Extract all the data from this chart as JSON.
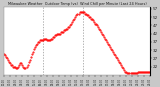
{
  "title": "Milwaukee Weather  Outdoor Temp (vs)  Wind Chill per Minute (Last 24 Hours)",
  "line_color": "#ff0000",
  "bg_color": "#c8c8c8",
  "plot_bg_color": "#ffffff",
  "grid_color": "#999999",
  "vline_color": "#888888",
  "ylim": [
    17,
    58
  ],
  "yticks": [
    22,
    27,
    32,
    37,
    42,
    47,
    52,
    57
  ],
  "vline_positions": [
    0.27,
    0.54
  ],
  "temp_data": [
    30,
    29,
    28,
    27,
    26,
    25,
    24,
    23,
    23,
    22,
    22,
    22,
    21,
    21,
    22,
    23,
    24,
    24,
    23,
    22,
    21,
    21,
    22,
    23,
    25,
    26,
    28,
    30,
    31,
    33,
    34,
    35,
    36,
    37,
    37,
    38,
    38,
    38,
    38,
    39,
    39,
    39,
    38,
    38,
    38,
    38,
    39,
    39,
    40,
    40,
    41,
    41,
    42,
    42,
    42,
    42,
    43,
    43,
    43,
    44,
    44,
    45,
    45,
    46,
    46,
    47,
    48,
    49,
    50,
    51,
    52,
    53,
    54,
    54,
    55,
    55,
    55,
    55,
    55,
    54,
    54,
    53,
    53,
    52,
    52,
    51,
    51,
    50,
    49,
    48,
    48,
    47,
    46,
    45,
    44,
    43,
    42,
    41,
    40,
    39,
    38,
    37,
    36,
    35,
    34,
    33,
    32,
    31,
    30,
    29,
    28,
    27,
    26,
    25,
    24,
    23,
    22,
    21,
    20,
    19,
    19,
    18,
    18,
    18,
    18,
    18,
    18,
    18,
    18,
    18,
    18,
    19,
    19,
    19,
    19,
    19,
    19,
    19,
    19,
    19,
    19,
    19,
    19,
    19
  ]
}
